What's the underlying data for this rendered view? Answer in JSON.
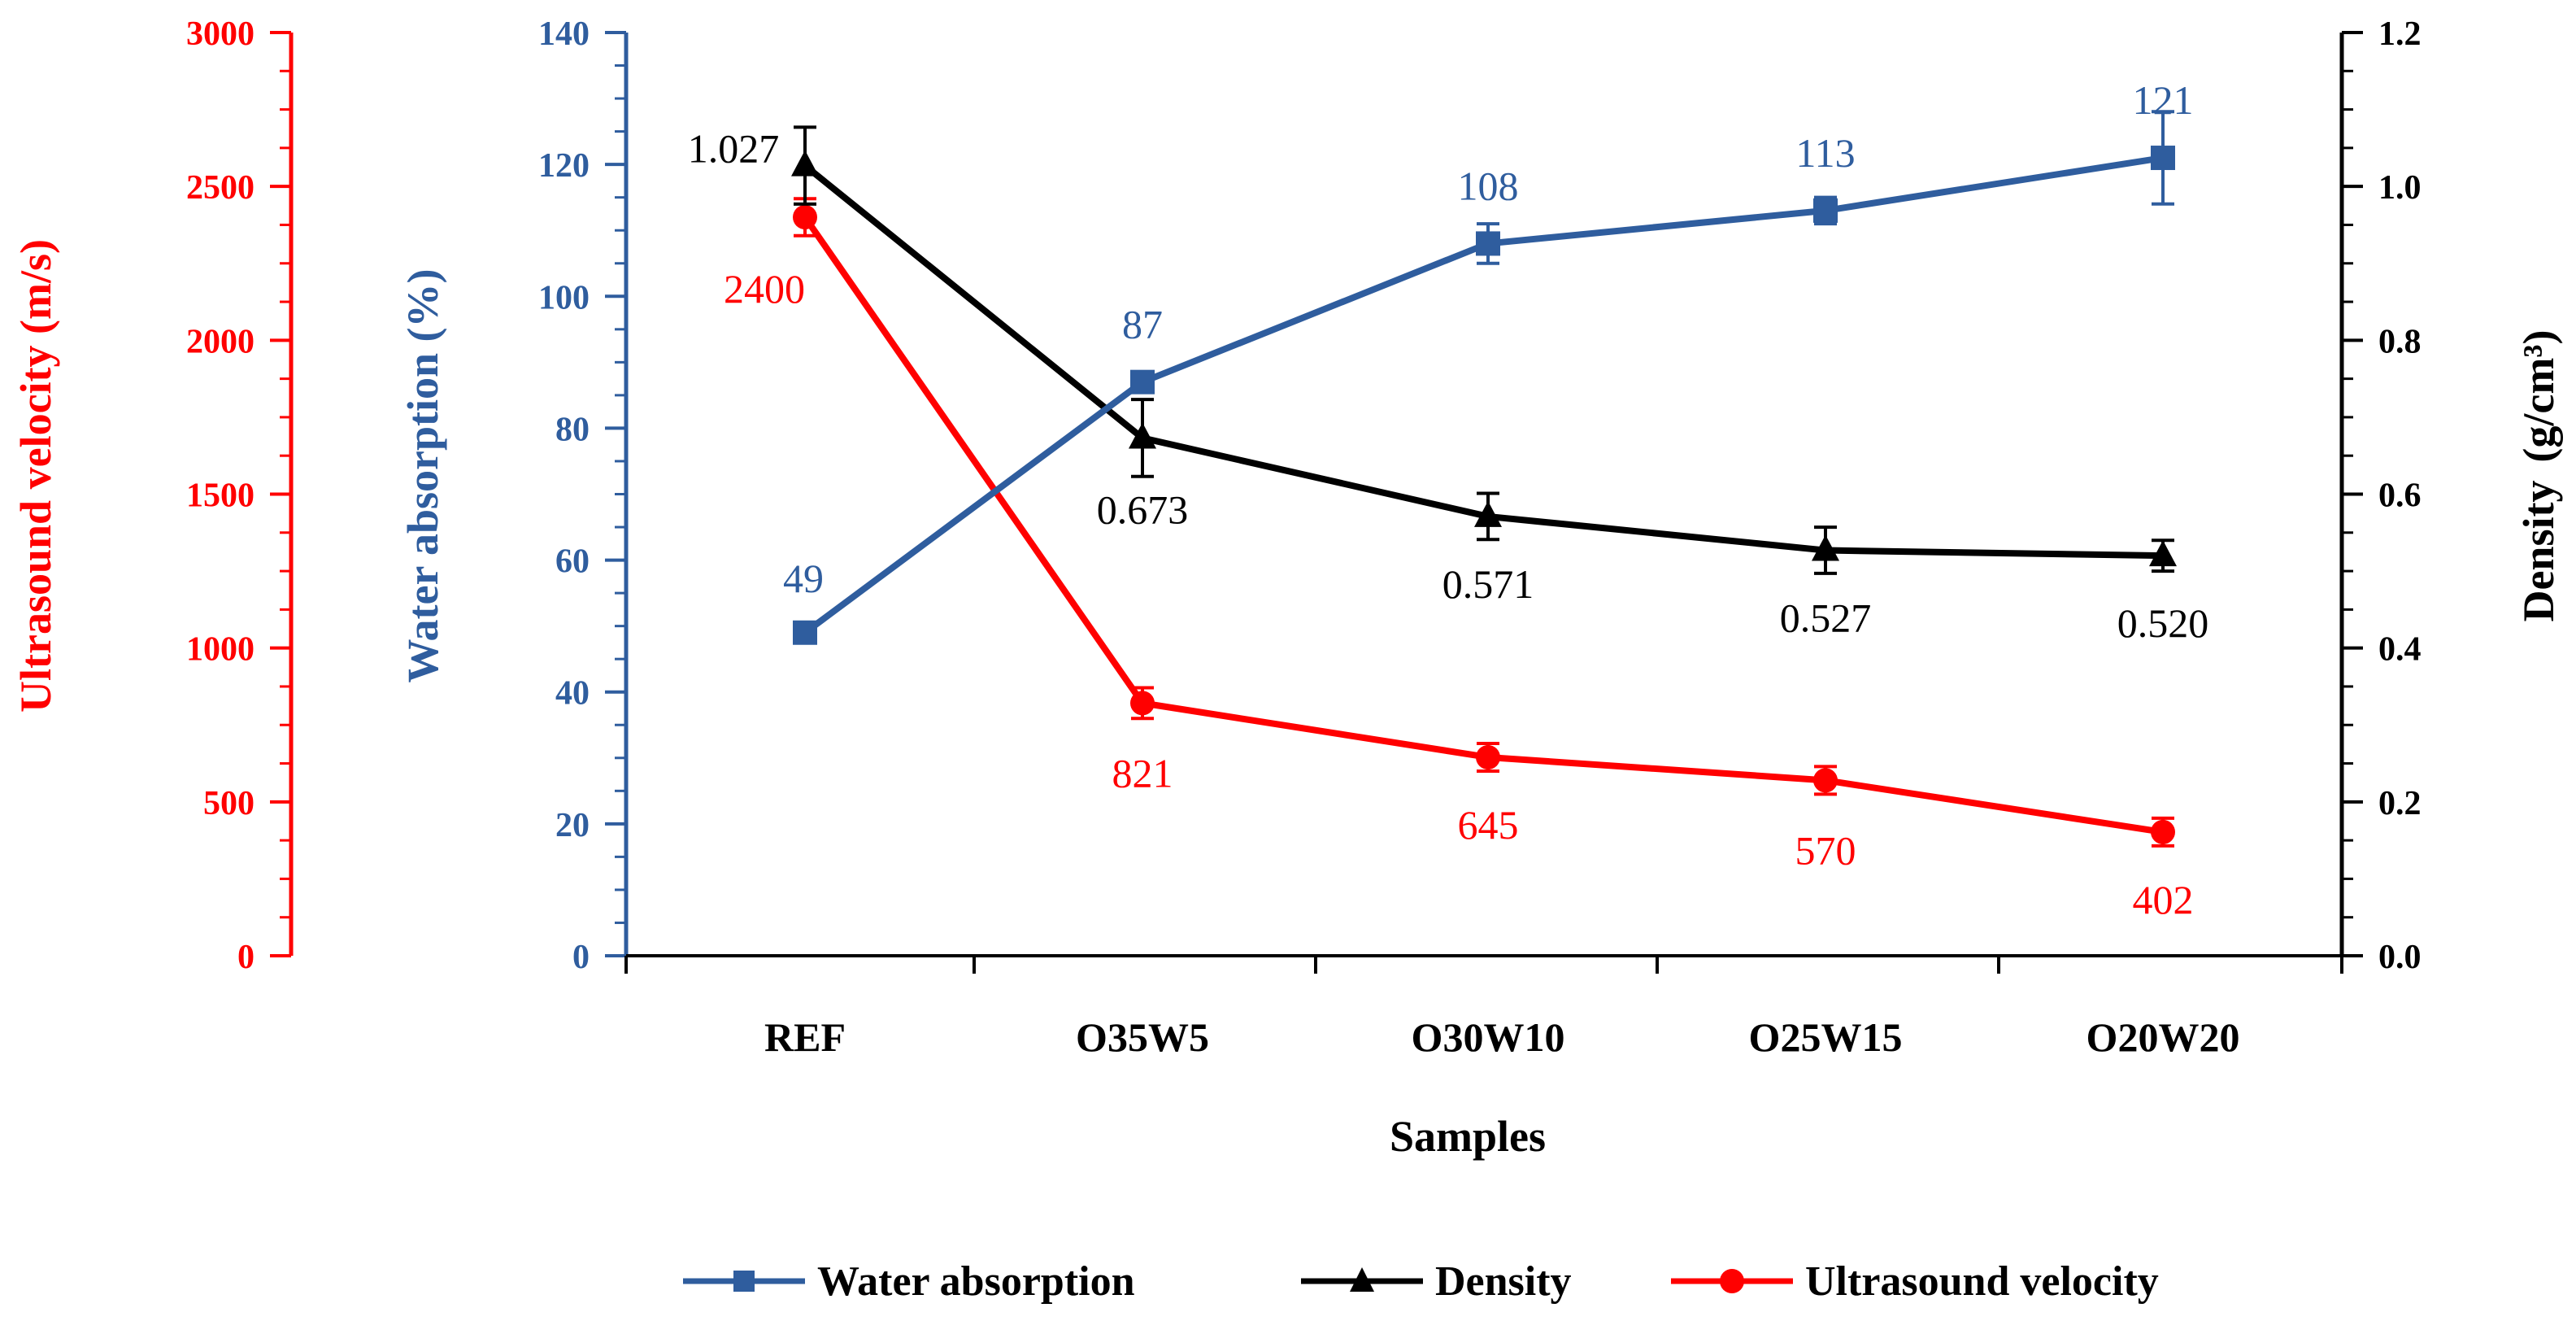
{
  "chart_data": {
    "type": "line",
    "categories": [
      "REF",
      "O35W5",
      "O30W10",
      "O25W15",
      "O20W20"
    ],
    "xlabel": "Samples",
    "axes": {
      "velocity": {
        "label": "Ultrasound velocity (m/s)",
        "ylim": [
          0,
          3000
        ],
        "ticks": [
          0,
          500,
          1000,
          1500,
          2000,
          2500,
          3000
        ],
        "color": "#ff0000"
      },
      "water": {
        "label": "Water absorption (%)",
        "ylim": [
          0,
          140
        ],
        "ticks": [
          0,
          20,
          40,
          60,
          80,
          100,
          120,
          140
        ],
        "color": "#2f5d9e"
      },
      "density": {
        "label": "Density",
        "label_unit": "(g/cm³)",
        "ylim": [
          0,
          1.2
        ],
        "ticks": [
          "0.0",
          "0.2",
          "0.4",
          "0.6",
          "0.8",
          "1.0",
          "1.2"
        ],
        "color": "#000000"
      }
    },
    "series": [
      {
        "name": "Water absorption",
        "axis": "water",
        "color": "#2f5d9e",
        "marker": "square",
        "values": [
          49,
          87,
          108,
          113,
          121
        ],
        "errors": [
          0,
          1,
          3,
          2,
          7
        ],
        "labels": [
          "49",
          "87",
          "108",
          "113",
          "121"
        ]
      },
      {
        "name": "Density",
        "axis": "density",
        "color": "#000000",
        "marker": "triangle",
        "values": [
          1.027,
          0.673,
          0.571,
          0.527,
          0.52
        ],
        "errors": [
          0.05,
          0.05,
          0.03,
          0.03,
          0.02
        ],
        "labels": [
          "1.027",
          "0.673",
          "0.571",
          "0.527",
          "0.520"
        ]
      },
      {
        "name": "Ultrasound velocity",
        "axis": "velocity",
        "color": "#ff0000",
        "marker": "circle",
        "values": [
          2400,
          821,
          645,
          570,
          402
        ],
        "errors": [
          60,
          50,
          45,
          45,
          45
        ],
        "labels": [
          "2400",
          "821",
          "645",
          "570",
          "402"
        ]
      }
    ],
    "legend": {
      "position": "bottom",
      "entries": [
        "Water absorption",
        "Density",
        "Ultrasound velocity"
      ]
    }
  }
}
